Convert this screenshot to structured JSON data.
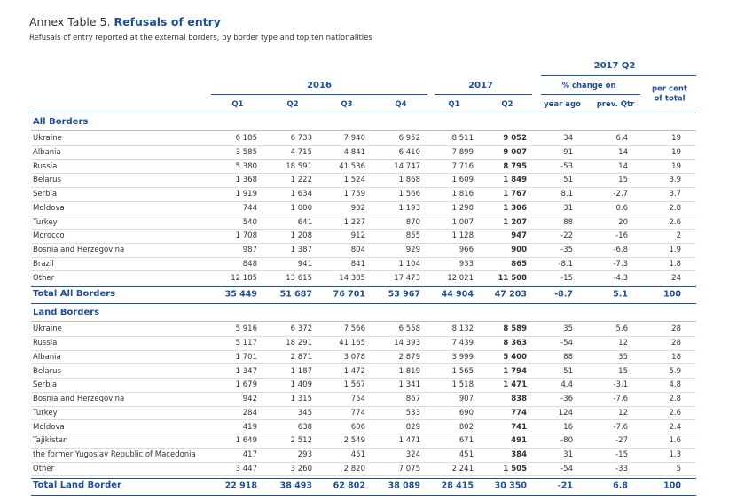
{
  "header": {
    "prefix": "Annex Table 5.",
    "title": "Refusals of entry",
    "subtitle": "Refusals of entry reported at the external borders, by border type and top ten nationalities"
  },
  "table": {
    "top_header": "2017 Q2",
    "year_2016": "2016",
    "year_2017": "2017",
    "change_on": "% change on",
    "per_cent_of_total": "per cent of total",
    "columns": [
      "Q1",
      "Q2",
      "Q3",
      "Q4",
      "Q1",
      "Q2",
      "year ago",
      "prev. Qtr"
    ],
    "sections": [
      {
        "title": "All Borders",
        "rows": [
          [
            "Ukraine",
            "6 185",
            "6 733",
            "7 940",
            "6 952",
            "8 511",
            "9 052",
            "34",
            "6.4",
            "19"
          ],
          [
            "Albania",
            "3 585",
            "4 715",
            "4 841",
            "6 410",
            "7 899",
            "9 007",
            "91",
            "14",
            "19"
          ],
          [
            "Russia",
            "5 380",
            "18 591",
            "41 536",
            "14 747",
            "7 716",
            "8 795",
            "-53",
            "14",
            "19"
          ],
          [
            "Belarus",
            "1 368",
            "1 222",
            "1 524",
            "1 868",
            "1 609",
            "1 849",
            "51",
            "15",
            "3.9"
          ],
          [
            "Serbia",
            "1 919",
            "1 634",
            "1 759",
            "1 566",
            "1 816",
            "1 767",
            "8.1",
            "-2.7",
            "3.7"
          ],
          [
            "Moldova",
            "744",
            "1 000",
            "932",
            "1 193",
            "1 298",
            "1 306",
            "31",
            "0.6",
            "2.8"
          ],
          [
            "Turkey",
            "540",
            "641",
            "1 227",
            "870",
            "1 007",
            "1 207",
            "88",
            "20",
            "2.6"
          ],
          [
            "Morocco",
            "1 708",
            "1 208",
            "912",
            "855",
            "1 128",
            "947",
            "-22",
            "-16",
            "2"
          ],
          [
            "Bosnia and Herzegovina",
            "987",
            "1 387",
            "804",
            "929",
            "966",
            "900",
            "-35",
            "-6.8",
            "1.9"
          ],
          [
            "Brazil",
            "848",
            "941",
            "841",
            "1 104",
            "933",
            "865",
            "-8.1",
            "-7.3",
            "1.8"
          ],
          [
            "Other",
            "12 185",
            "13 615",
            "14 385",
            "17 473",
            "12 021",
            "11 508",
            "-15",
            "-4.3",
            "24"
          ]
        ],
        "total": [
          "Total All Borders",
          "35 449",
          "51 687",
          "76 701",
          "53 967",
          "44 904",
          "47 203",
          "-8.7",
          "5.1",
          "100"
        ]
      },
      {
        "title": "Land Borders",
        "rows": [
          [
            "Ukraine",
            "5 916",
            "6 372",
            "7 566",
            "6 558",
            "8 132",
            "8 589",
            "35",
            "5.6",
            "28"
          ],
          [
            "Russia",
            "5 117",
            "18 291",
            "41 165",
            "14 393",
            "7 439",
            "8 363",
            "-54",
            "12",
            "28"
          ],
          [
            "Albania",
            "1 701",
            "2 871",
            "3 078",
            "2 879",
            "3 999",
            "5 400",
            "88",
            "35",
            "18"
          ],
          [
            "Belarus",
            "1 347",
            "1 187",
            "1 472",
            "1 819",
            "1 565",
            "1 794",
            "51",
            "15",
            "5.9"
          ],
          [
            "Serbia",
            "1 679",
            "1 409",
            "1 567",
            "1 341",
            "1 518",
            "1 471",
            "4.4",
            "-3.1",
            "4.8"
          ],
          [
            "Bosnia and Herzegovina",
            "942",
            "1 315",
            "754",
            "867",
            "907",
            "838",
            "-36",
            "-7.6",
            "2.8"
          ],
          [
            "Turkey",
            "284",
            "345",
            "774",
            "533",
            "690",
            "774",
            "124",
            "12",
            "2.6"
          ],
          [
            "Moldova",
            "419",
            "638",
            "606",
            "829",
            "802",
            "741",
            "16",
            "-7.6",
            "2.4"
          ],
          [
            "Tajikistan",
            "1 649",
            "2 512",
            "2 549",
            "1 471",
            "671",
            "491",
            "-80",
            "-27",
            "1.6"
          ],
          [
            "the former Yugoslav Republic of Macedonia",
            "417",
            "293",
            "451",
            "324",
            "451",
            "384",
            "31",
            "-15",
            "1.3"
          ],
          [
            "Other",
            "3 447",
            "3 260",
            "2 820",
            "7 075",
            "2 241",
            "1 505",
            "-54",
            "-33",
            "5"
          ]
        ],
        "total": [
          "Total Land Border",
          "22 918",
          "38 493",
          "62 802",
          "38 089",
          "28 415",
          "30 350",
          "-21",
          "6.8",
          "100"
        ]
      }
    ]
  }
}
